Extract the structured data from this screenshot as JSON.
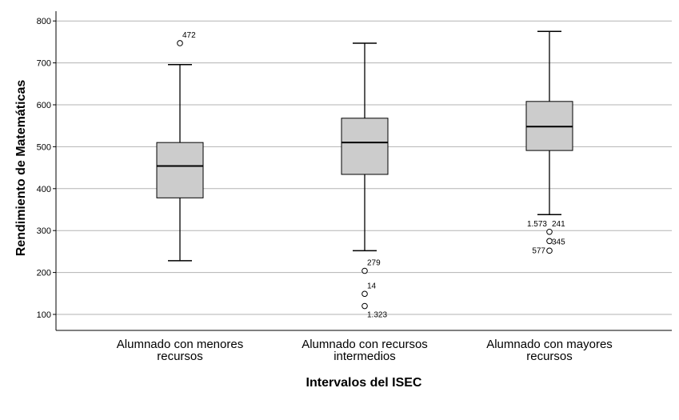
{
  "chart_data": {
    "type": "boxplot",
    "xlabel": "Intervalos del ISEC",
    "ylabel": "Rendimiento de Matemáticas",
    "ylim": [
      60,
      830
    ],
    "yticks": [
      100,
      200,
      300,
      400,
      500,
      600,
      700,
      800
    ],
    "grid": "horizontal",
    "colors": {
      "box_fill": "#cccccc",
      "grid": "#b3b3b3",
      "axis": "#000000"
    },
    "groups": [
      {
        "label": [
          "Alumnado con menores",
          "recursos"
        ],
        "whisker_low": 228,
        "q1": 378,
        "median": 454,
        "q3": 510,
        "whisker_high": 696,
        "outliers": [
          {
            "value": 747,
            "label": "472"
          }
        ]
      },
      {
        "label": [
          "Alumnado con recursos",
          "intermedios"
        ],
        "whisker_low": 252,
        "q1": 434,
        "median": 510,
        "q3": 568,
        "whisker_high": 747,
        "outliers": [
          {
            "value": 204,
            "label": "279"
          },
          {
            "value": 149,
            "label": "14"
          },
          {
            "value": 120,
            "label": "1.323"
          }
        ]
      },
      {
        "label": [
          "Alumnado con mayores",
          "recursos"
        ],
        "whisker_low": 338,
        "q1": 491,
        "median": 548,
        "q3": 608,
        "whisker_high": 775,
        "outliers": [
          {
            "value": 297,
            "label": "241",
            "label2": "1.573"
          },
          {
            "value": 275,
            "label": "345"
          },
          {
            "value": 252,
            "label": "577",
            "side": "left"
          }
        ]
      }
    ]
  }
}
